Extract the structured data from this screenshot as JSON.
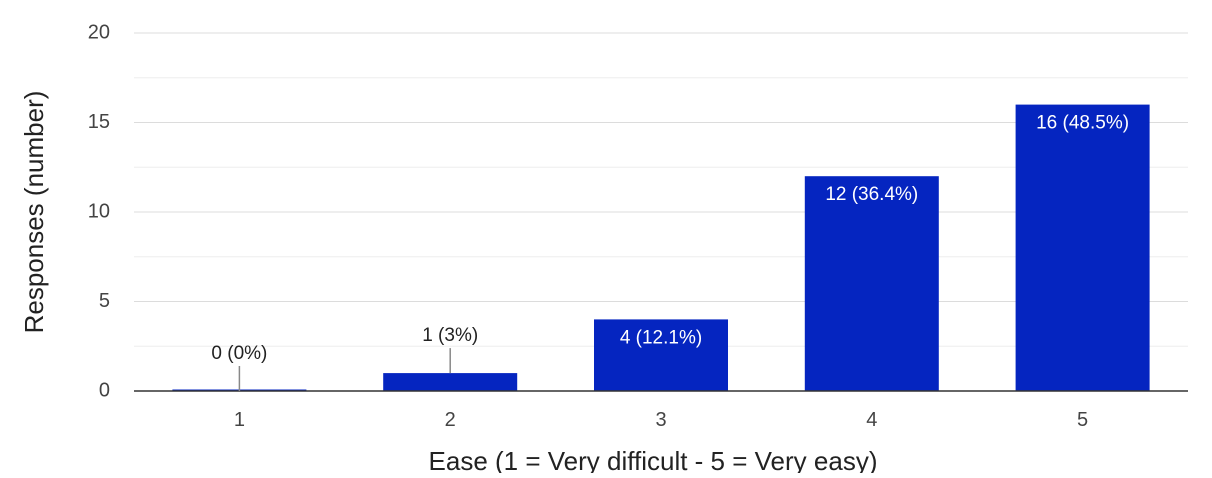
{
  "chart_data": {
    "type": "bar",
    "categories": [
      "1",
      "2",
      "3",
      "4",
      "5"
    ],
    "values": [
      0,
      1,
      4,
      12,
      16
    ],
    "data_labels": [
      "0 (0%)",
      "1 (3%)",
      "4 (12.1%)",
      "12 (36.4%)",
      "16 (48.5%)"
    ],
    "xlabel": "Ease (1 = Very difficult - 5 = Very easy)",
    "ylabel": "Responses (number)",
    "ylim": [
      0,
      20
    ],
    "yticks": [
      "0",
      "5",
      "10",
      "15",
      "20"
    ],
    "grid": true,
    "legend": "none",
    "colors": {
      "bar": "#0525c0",
      "grid": "#e6e6e6",
      "axis": "#333333",
      "label_outside": "#222222",
      "label_inside": "#ffffff",
      "tick_text": "#444444"
    }
  }
}
